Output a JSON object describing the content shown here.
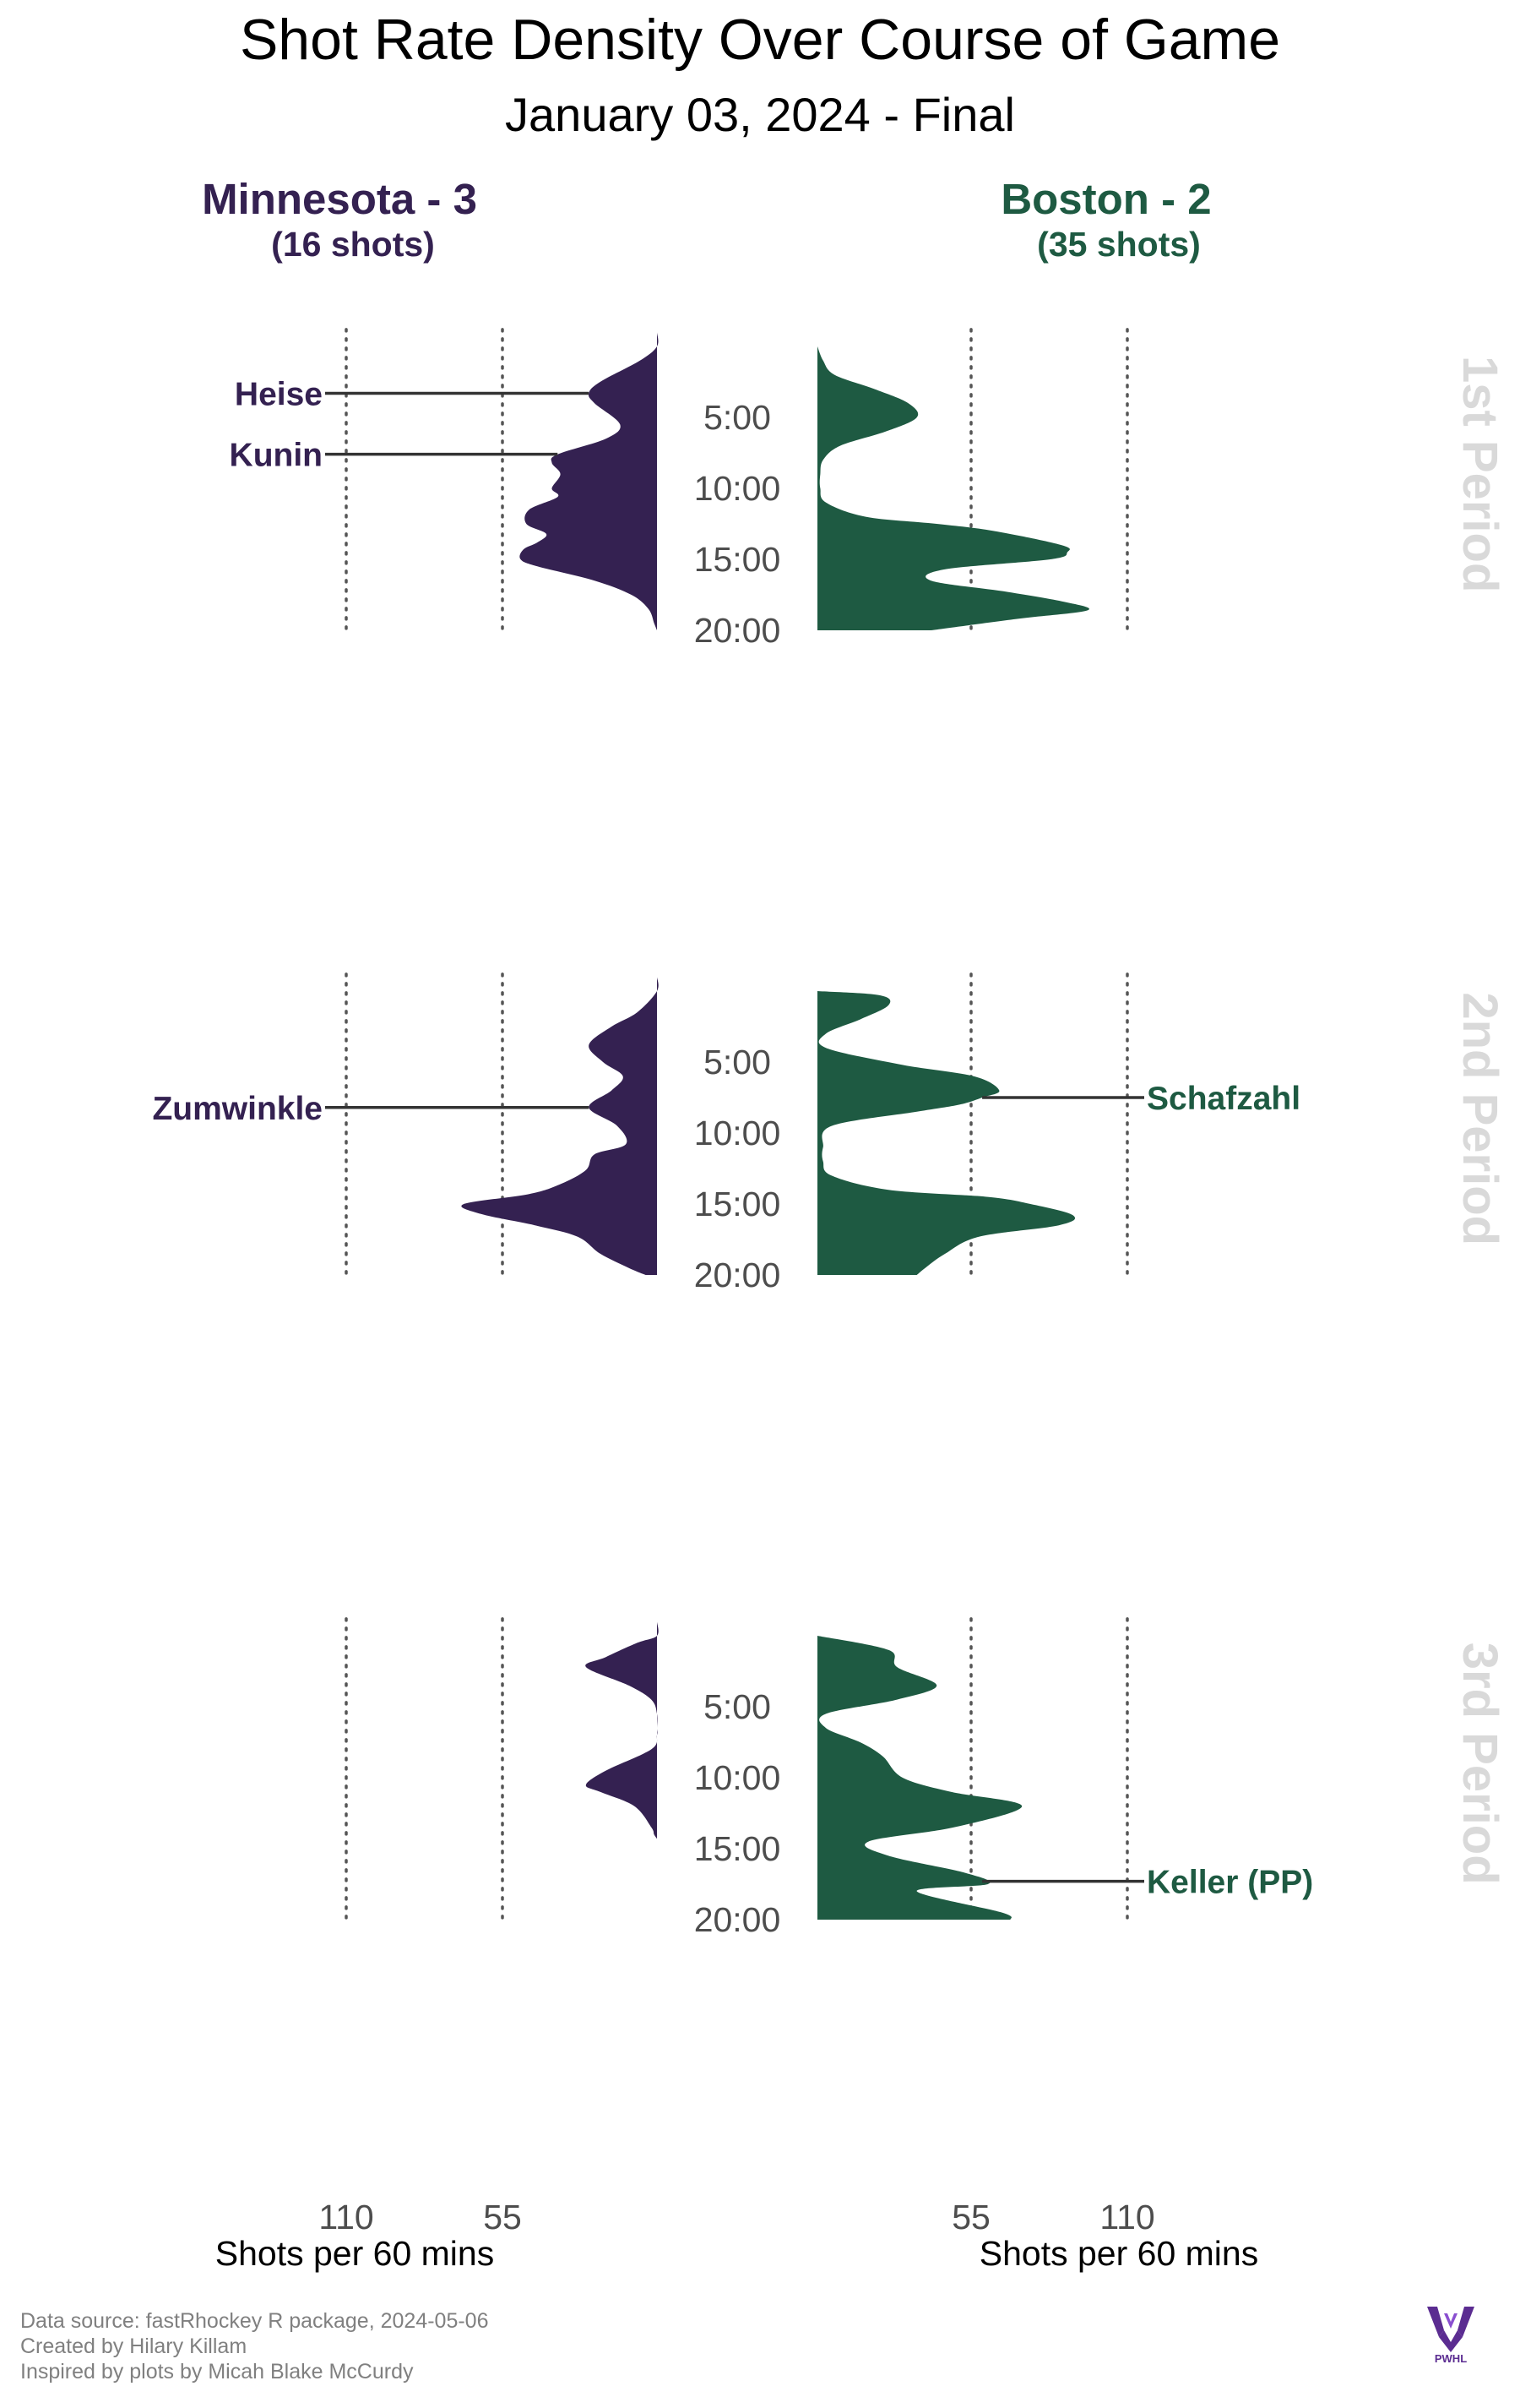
{
  "title": "Shot Rate Density Over Course of Game",
  "subtitle": "January 03, 2024 - Final",
  "colors": {
    "home": "#342151",
    "away": "#1e5a42",
    "period_label": "#d9d9d9",
    "tick": "#4d4d4d",
    "gridline": "#555555",
    "footer": "#808080"
  },
  "teams": {
    "left": {
      "header": "Minnesota - 3",
      "shots": "(16 shots)",
      "color": "#342151"
    },
    "right": {
      "header": "Boston - 2",
      "shots": "(35 shots)",
      "color": "#1e5a42"
    }
  },
  "time_ticks": [
    "5:00",
    "10:00",
    "15:00",
    "20:00"
  ],
  "period_labels": [
    "1st Period",
    "2nd Period",
    "3rd Period"
  ],
  "axis": {
    "left_ticks": [
      "110",
      "55"
    ],
    "right_ticks": [
      "55",
      "110"
    ],
    "label": "Shots per 60 mins"
  },
  "footer": {
    "line1": "Data source: fastRhockey R package, 2024-05-06",
    "line2": "Created by Hilary Killam",
    "line3": "Inspired by plots by Micah Blake McCurdy"
  },
  "logo": {
    "icon": "pwhl-logo",
    "text": "PWHL"
  },
  "chart_data": {
    "type": "area",
    "x_unit": "minutes into period",
    "y_unit": "Shots per 60 mins",
    "xlim": [
      0,
      20
    ],
    "ylim": [
      0,
      110
    ],
    "periods": [
      {
        "label": "1st Period",
        "series": [
          {
            "name": "Minnesota - 3",
            "side": "left",
            "x": [
              -1,
              0,
              1,
              2.5,
              3.3,
              4,
              5.5,
              6.5,
              7.6,
              8.2,
              9,
              10,
              10.6,
              11.5,
              12.5,
              13.2,
              13.8,
              14.3,
              15,
              15.5,
              16.5,
              17.5,
              18.5,
              19.5,
              20
            ],
            "values": [
              0,
              0,
              6,
              20,
              24,
              22,
              13,
              18,
              35,
              37,
              34,
              37,
              35,
              45,
              46,
              39,
              42,
              47,
              48,
              42,
              22,
              9,
              3,
              1,
              0
            ]
          },
          {
            "name": "Boston - 2",
            "side": "right",
            "x": [
              0,
              1,
              2,
              3,
              4,
              5,
              6,
              7,
              8,
              9,
              10,
              11,
              12,
              12.5,
              13,
              14,
              14.5,
              15,
              15.7,
              16.5,
              17.3,
              18,
              18.6,
              19.2,
              20
            ],
            "values": [
              0,
              2,
              6,
              20,
              32,
              35,
              24,
              8,
              2,
              1,
              1,
              3,
              17,
              42,
              62,
              86,
              88,
              82,
              45,
              40,
              67,
              87,
              95,
              70,
              40
            ]
          }
        ],
        "annotations": [
          {
            "side": "left",
            "player": "Heise",
            "minute": 3.3
          },
          {
            "side": "left",
            "player": "Kunin",
            "minute": 7.6
          }
        ]
      },
      {
        "label": "2nd Period",
        "series": [
          {
            "name": "Minnesota - 3",
            "side": "left",
            "x": [
              -1,
              0,
              1.5,
              2.5,
              3.8,
              5,
              6,
              7,
              8.2,
              9.5,
              10.8,
              11.5,
              12.6,
              13.6,
              14.3,
              15,
              15.7,
              16.5,
              17.3,
              18.5,
              19.5,
              20
            ],
            "values": [
              0,
              0,
              7,
              16,
              24,
              19,
              12,
              16,
              24,
              14,
              11,
              22,
              25,
              34,
              45,
              68,
              62,
              43,
              28,
              20,
              10,
              4
            ]
          },
          {
            "name": "Boston - 2",
            "side": "right",
            "x": [
              0,
              0.3,
              1,
              2,
              3,
              4,
              5.2,
              6,
              7,
              7.5,
              8,
              8.5,
              9.5,
              11,
              12,
              13,
              14,
              14.5,
              15,
              15.8,
              16.5,
              17.3,
              18.5,
              19.5,
              20
            ],
            "values": [
              0,
              22,
              25,
              15,
              3,
              3,
              30,
              55,
              64,
              58,
              50,
              35,
              5,
              2,
              2,
              5,
              25,
              60,
              75,
              90,
              85,
              57,
              45,
              38,
              35
            ]
          }
        ],
        "annotations": [
          {
            "side": "left",
            "player": "Zumwinkle",
            "minute": 8.2
          },
          {
            "side": "right",
            "player": "Schafzahl",
            "minute": 7.5
          }
        ]
      },
      {
        "label": "3rd Period",
        "series": [
          {
            "name": "Minnesota - 3",
            "side": "left",
            "x": [
              -1,
              0,
              0.5,
              1.5,
              2.2,
              3.5,
              4.5,
              5.5,
              6.5,
              7,
              8,
              9.5,
              10.5,
              11,
              12,
              13.5,
              14,
              14.3
            ],
            "values": [
              0,
              0,
              7,
              18,
              25,
              10,
              2,
              0,
              0,
              0,
              2,
              18,
              25,
              20,
              8,
              2,
              1,
              0
            ]
          },
          {
            "name": "Boston - 2",
            "side": "right",
            "x": [
              0,
              1,
              2.2,
              3.5,
              4.5,
              5.5,
              6.5,
              7.5,
              8.5,
              10,
              11,
              12,
              13.5,
              14.5,
              15.5,
              16.7,
              17.5,
              18,
              19.5,
              20
            ],
            "values": [
              0,
              25,
              28,
              42,
              28,
              3,
              3,
              15,
              23,
              30,
              47,
              72,
              48,
              18,
              25,
              52,
              60,
              35,
              65,
              68
            ]
          }
        ],
        "annotations": [
          {
            "side": "right",
            "player": "Keller (PP)",
            "minute": 17.3
          }
        ]
      }
    ]
  }
}
